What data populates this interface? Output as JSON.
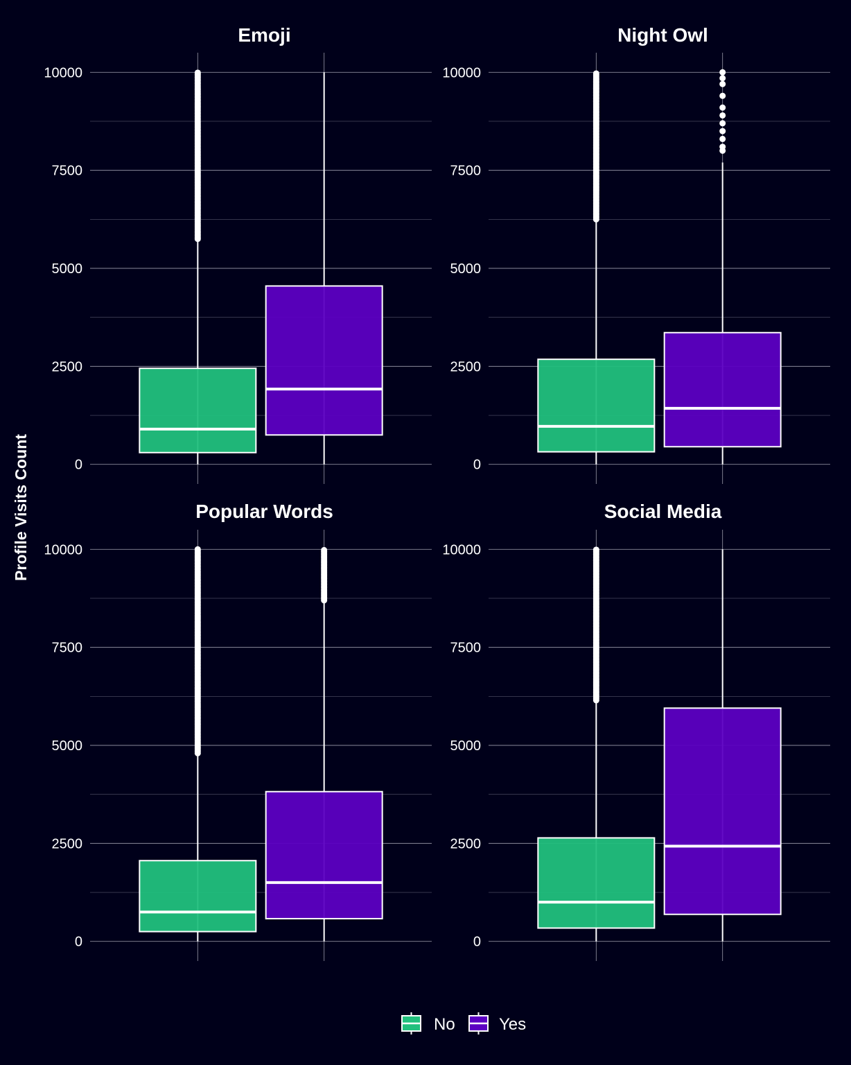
{
  "chart_data": {
    "type": "boxplot",
    "ylabel": "Profile Visits Count",
    "xlabel": "",
    "ylim": [
      -500,
      10500
    ],
    "yticks": [
      0,
      2500,
      5000,
      7500,
      10000
    ],
    "grid": true,
    "legend_position": "bottom",
    "groups": [
      {
        "name": "No",
        "color": "#21c07d"
      },
      {
        "name": "Yes",
        "color": "#5c00c2"
      }
    ],
    "panels": [
      {
        "title": "Emoji",
        "boxes": [
          {
            "group": "No",
            "min": 0,
            "q1": 300,
            "median": 900,
            "q3": 2450,
            "max": 5700,
            "outliers_from": 5750,
            "outliers_to": 10000
          },
          {
            "group": "Yes",
            "min": 0,
            "q1": 750,
            "median": 1920,
            "q3": 4550,
            "max": 10000
          }
        ]
      },
      {
        "title": "Night Owl",
        "boxes": [
          {
            "group": "No",
            "min": 0,
            "q1": 320,
            "median": 970,
            "q3": 2680,
            "max": 6200,
            "outliers_from": 6250,
            "outliers_to": 10000
          },
          {
            "group": "Yes",
            "min": 0,
            "q1": 450,
            "median": 1430,
            "q3": 3360,
            "max": 7700,
            "outliers": [
              8000,
              8100,
              8300,
              8500,
              8700,
              8900,
              9100,
              9400,
              9700,
              9850,
              10000
            ]
          }
        ]
      },
      {
        "title": "Popular Words",
        "boxes": [
          {
            "group": "No",
            "min": 0,
            "q1": 250,
            "median": 750,
            "q3": 2060,
            "max": 4750,
            "outliers_from": 4800,
            "outliers_to": 10000
          },
          {
            "group": "Yes",
            "min": 0,
            "q1": 580,
            "median": 1500,
            "q3": 3820,
            "max": 8650,
            "outliers_from": 8700,
            "outliers_to": 10000
          }
        ]
      },
      {
        "title": "Social Media",
        "boxes": [
          {
            "group": "No",
            "min": 0,
            "q1": 340,
            "median": 1000,
            "q3": 2640,
            "max": 6100,
            "outliers_from": 6150,
            "outliers_to": 10000
          },
          {
            "group": "Yes",
            "min": 0,
            "q1": 690,
            "median": 2430,
            "q3": 5950,
            "max": 10000
          }
        ]
      }
    ]
  }
}
